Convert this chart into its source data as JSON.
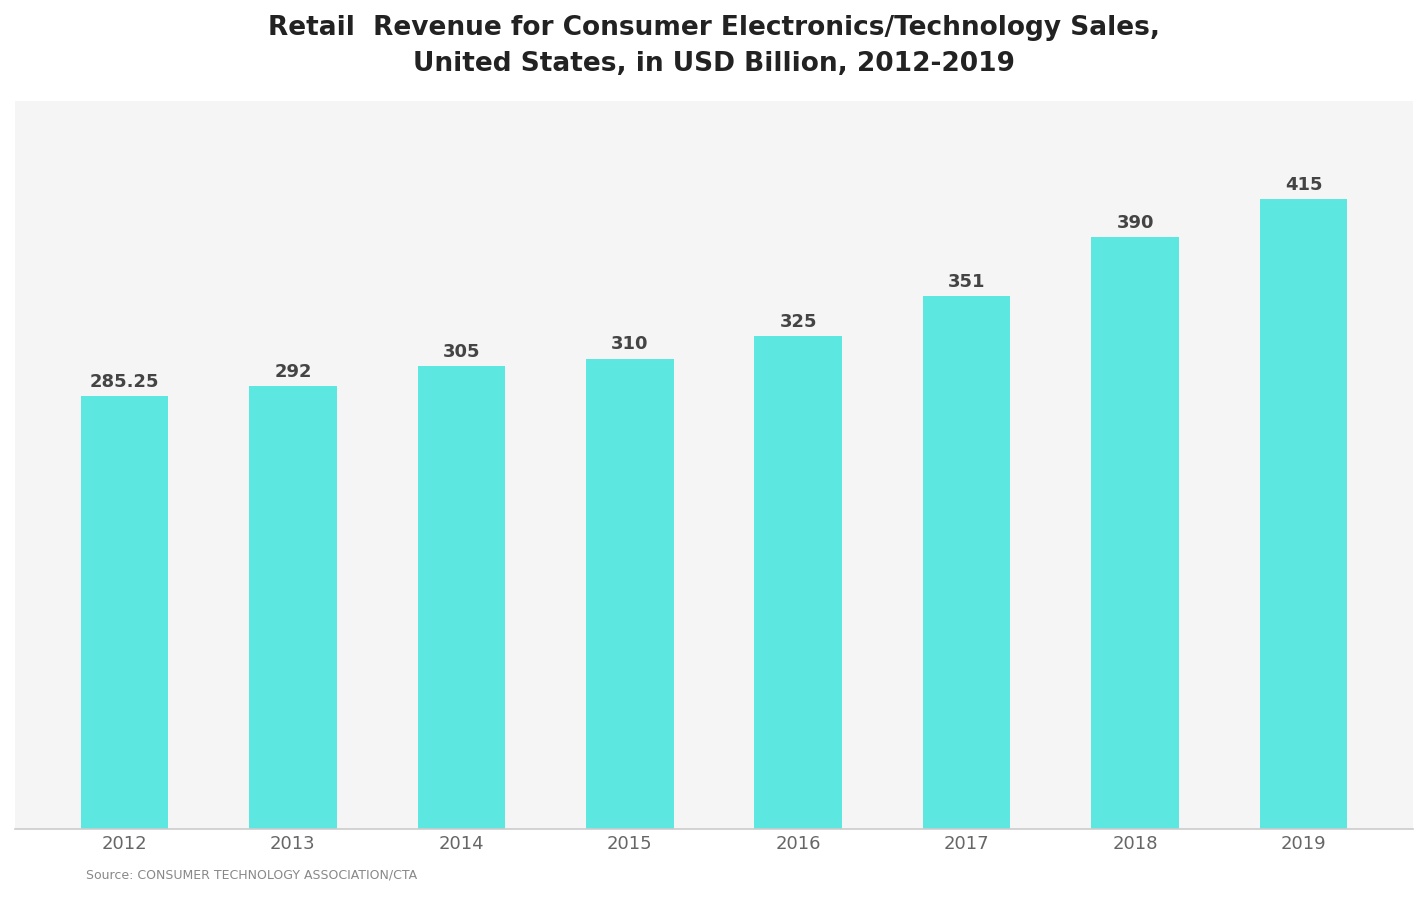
{
  "title": "Retail  Revenue for Consumer Electronics/Technology Sales,\nUnited States, in USD Billion, 2012-2019",
  "categories": [
    "2012",
    "2013",
    "2014",
    "2015",
    "2016",
    "2017",
    "2018",
    "2019"
  ],
  "values": [
    285.25,
    292.0,
    305.0,
    310.0,
    325.0,
    351.0,
    390.0,
    415.0
  ],
  "bar_color": "#5ce8e0",
  "background_color": "#ffffff",
  "plot_bg_color": "#f5f5f5",
  "title_color": "#222222",
  "label_value_color": "#444444",
  "tick_color": "#666666",
  "bar_labels": [
    "285.25",
    "292",
    "305",
    "310",
    "325",
    "351",
    "390",
    "415"
  ],
  "ylim": [
    0,
    480
  ],
  "title_fontsize": 19,
  "tick_fontsize": 13,
  "value_fontsize": 13,
  "source_text": "Source: CONSUMER TECHNOLOGY ASSOCIATION/CTA"
}
